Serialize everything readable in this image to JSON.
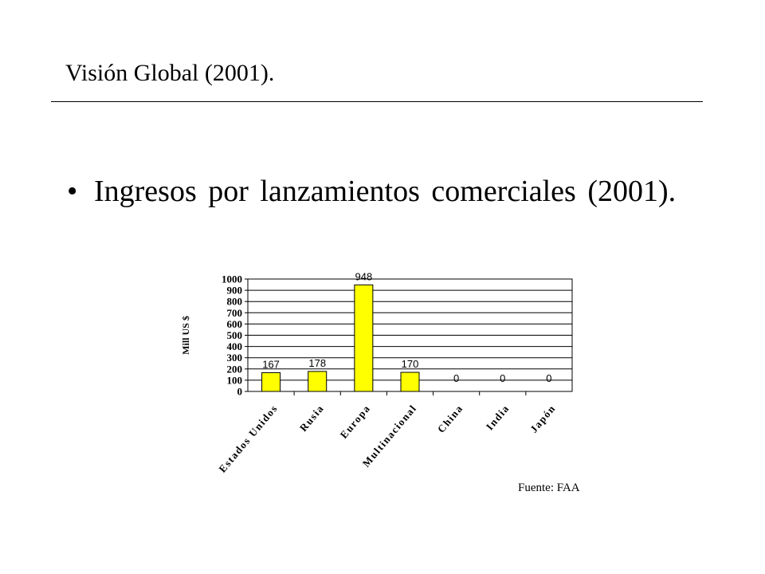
{
  "slide": {
    "title": "Visión Global (2001).",
    "bullet": "Ingresos por lanzamientos comerciales (2001).",
    "source_note": "Fuente: FAA"
  },
  "chart_data": {
    "type": "bar",
    "title": "",
    "xlabel": "",
    "ylabel": "Mill US $",
    "categories": [
      "Estados Unidos",
      "Rusia",
      "Europa",
      "Multinacional",
      "China",
      "India",
      "Japón"
    ],
    "series": [
      {
        "values": [
          167,
          178,
          948,
          170,
          0,
          0,
          0
        ]
      }
    ],
    "data_labels": [
      "167",
      "178",
      "948",
      "170",
      "0",
      "0",
      "0"
    ],
    "ylim": [
      0,
      1000
    ],
    "yticks": [
      0,
      100,
      200,
      300,
      400,
      500,
      600,
      700,
      800,
      900,
      1000
    ],
    "grid": true,
    "legend": "none",
    "bar_color": "#ffff00"
  }
}
